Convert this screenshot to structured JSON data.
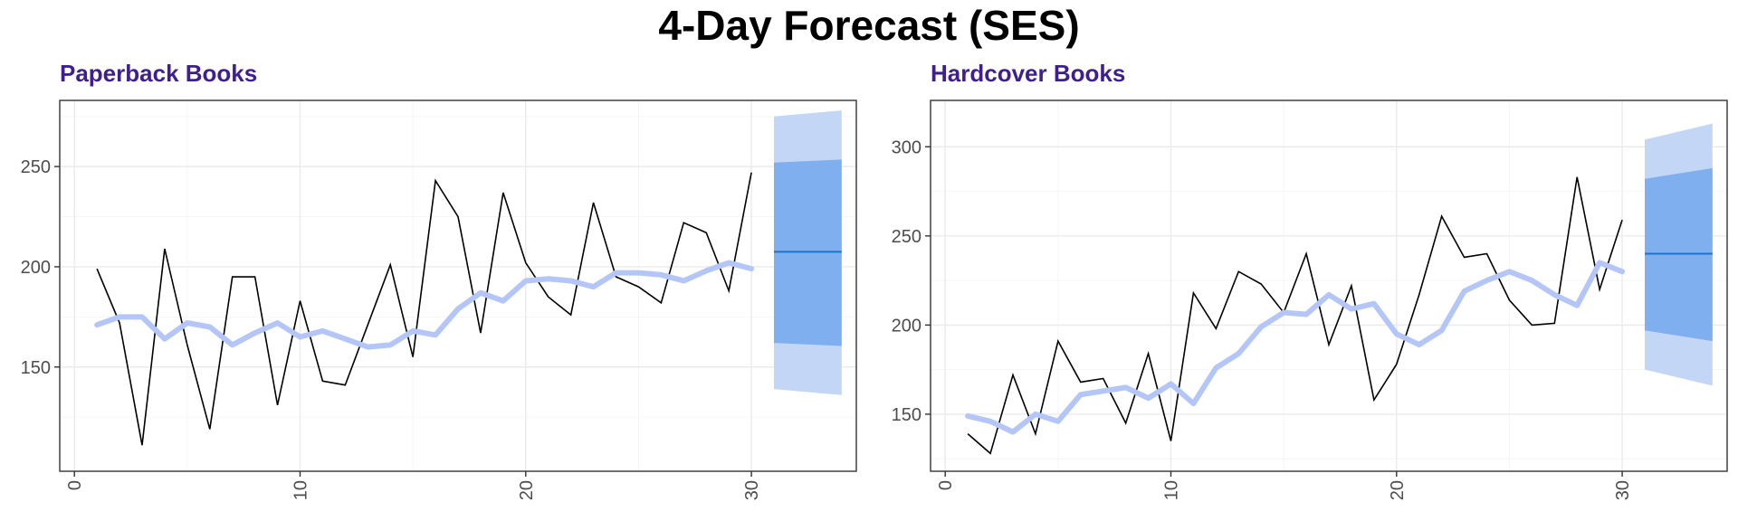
{
  "page": {
    "title": "4-Day Forecast (SES)"
  },
  "colors": {
    "title": "#3f1f8f",
    "actual": "#000000",
    "fitted": "#b3c6f7",
    "band95": "#c4d6f5",
    "band80": "#7fafee",
    "mean": "#1b75c9",
    "grid": "#ebebeb",
    "frame": "#333333"
  },
  "chart_data": [
    {
      "type": "line",
      "title": "Paperback Books",
      "xlabel": "",
      "ylabel": "",
      "xlim": [
        -0.65,
        34.65
      ],
      "ylim": [
        98,
        283
      ],
      "xticks": [
        0,
        10,
        20,
        30
      ],
      "yticks": [
        150,
        200,
        250
      ],
      "grid": true,
      "series": [
        {
          "role": "actual",
          "x": [
            1,
            2,
            3,
            4,
            5,
            6,
            7,
            8,
            9,
            10,
            11,
            12,
            13,
            14,
            15,
            16,
            17,
            18,
            19,
            20,
            21,
            22,
            23,
            24,
            25,
            26,
            27,
            28,
            29,
            30
          ],
          "y": [
            199,
            172,
            111,
            209,
            161,
            119,
            195,
            195,
            131,
            183,
            143,
            141,
            171,
            201,
            155,
            243,
            225,
            167,
            237,
            202,
            185,
            176,
            232,
            195,
            190,
            182,
            222,
            217,
            188,
            247
          ]
        },
        {
          "role": "fitted",
          "x": [
            1,
            2,
            3,
            4,
            5,
            6,
            7,
            8,
            9,
            10,
            11,
            12,
            13,
            14,
            15,
            16,
            17,
            18,
            19,
            20,
            21,
            22,
            23,
            24,
            25,
            26,
            27,
            28,
            29,
            30
          ],
          "y": [
            171,
            175,
            175,
            164,
            172,
            170,
            161,
            167,
            172,
            165,
            168,
            164,
            160,
            161,
            168,
            166,
            179,
            187,
            183,
            193,
            194,
            193,
            190,
            197,
            197,
            196,
            193,
            198,
            202,
            199
          ]
        }
      ],
      "forecast": {
        "x": [
          31,
          32,
          33,
          34
        ],
        "mean": [
          207.5,
          207.5,
          207.5,
          207.5
        ],
        "lo80": [
          162,
          161.5,
          161,
          160.5
        ],
        "hi80": [
          252,
          252.5,
          253,
          253.5
        ],
        "lo95": [
          139,
          138,
          137,
          136
        ],
        "hi95": [
          275,
          276,
          277,
          278
        ]
      }
    },
    {
      "type": "line",
      "title": "Hardcover Books",
      "xlabel": "",
      "ylabel": "",
      "xlim": [
        -0.65,
        34.65
      ],
      "ylim": [
        118,
        326
      ],
      "xticks": [
        0,
        10,
        20,
        30
      ],
      "yticks": [
        150,
        200,
        250,
        300
      ],
      "grid": true,
      "series": [
        {
          "role": "actual",
          "x": [
            1,
            2,
            3,
            4,
            5,
            6,
            7,
            8,
            9,
            10,
            11,
            12,
            13,
            14,
            15,
            16,
            17,
            18,
            19,
            20,
            21,
            22,
            23,
            24,
            25,
            26,
            27,
            28,
            29,
            30
          ],
          "y": [
            139,
            128,
            172,
            139,
            191,
            168,
            170,
            145,
            184,
            135,
            218,
            198,
            230,
            223,
            207,
            240,
            189,
            222,
            158,
            178,
            217,
            261,
            238,
            240,
            214,
            200,
            201,
            283,
            220,
            259
          ]
        },
        {
          "role": "fitted",
          "x": [
            1,
            2,
            3,
            4,
            5,
            6,
            7,
            8,
            9,
            10,
            11,
            12,
            13,
            14,
            15,
            16,
            17,
            18,
            19,
            20,
            21,
            22,
            23,
            24,
            25,
            26,
            27,
            28,
            29,
            30
          ],
          "y": [
            149,
            146,
            140,
            150,
            146,
            161,
            163,
            165,
            159,
            167,
            156,
            176,
            184,
            199,
            207,
            206,
            217,
            209,
            212,
            195,
            189,
            197,
            219,
            225,
            230,
            225,
            217,
            211,
            235,
            230
          ]
        }
      ],
      "forecast": {
        "x": [
          31,
          32,
          33,
          34
        ],
        "mean": [
          240,
          240,
          240,
          240
        ],
        "lo80": [
          197,
          195,
          193,
          191
        ],
        "hi80": [
          282,
          284,
          286,
          288
        ],
        "lo95": [
          175,
          172,
          169,
          166
        ],
        "hi95": [
          304,
          307,
          310,
          313
        ]
      }
    }
  ]
}
